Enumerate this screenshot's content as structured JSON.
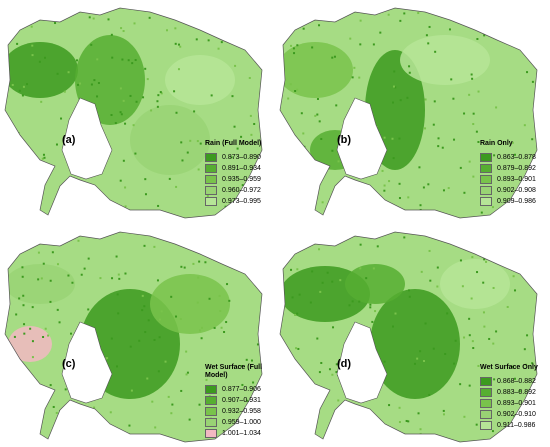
{
  "panels": [
    {
      "label": "(a)",
      "legend_title": "Rain (Full Model)",
      "legend": [
        {
          "label": "0.873–0.890",
          "color": "#3c9a1f"
        },
        {
          "label": "0.891–0.934",
          "color": "#56ae31"
        },
        {
          "label": "0.935–0.959",
          "color": "#79c34b"
        },
        {
          "label": "0.960–0.972",
          "color": "#99d374"
        },
        {
          "label": "0.973–0.995",
          "color": "#b6e597"
        }
      ]
    },
    {
      "label": "(b)",
      "legend_title": "Rain Only",
      "legend": [
        {
          "label": "0.863–0.878",
          "color": "#3c9a1f"
        },
        {
          "label": "0.879–0.892",
          "color": "#56ae31"
        },
        {
          "label": "0.893–0.901",
          "color": "#79c34b"
        },
        {
          "label": "0.902–0.908",
          "color": "#99d374"
        },
        {
          "label": "0.909–0.986",
          "color": "#b6e597"
        }
      ]
    },
    {
      "label": "(c)",
      "legend_title": "Wet Surface (Full Model)",
      "legend": [
        {
          "label": "0.877–0.906",
          "color": "#3c9a1f"
        },
        {
          "label": "0.907–0.931",
          "color": "#56ae31"
        },
        {
          "label": "0.932–0.958",
          "color": "#79c34b"
        },
        {
          "label": "0.959–1.000",
          "color": "#99d374"
        },
        {
          "label": "1.001–1.034",
          "color": "#f2b8c2"
        }
      ]
    },
    {
      "label": "(d)",
      "legend_title": "Wet Surface Only",
      "legend": [
        {
          "label": "0.868–0.882",
          "color": "#3c9a1f"
        },
        {
          "label": "0.883–0.892",
          "color": "#56ae31"
        },
        {
          "label": "0.893–0.901",
          "color": "#79c34b"
        },
        {
          "label": "0.902–0.910",
          "color": "#99d374"
        },
        {
          "label": "0.911–0.986",
          "color": "#b6e597"
        }
      ]
    }
  ]
}
